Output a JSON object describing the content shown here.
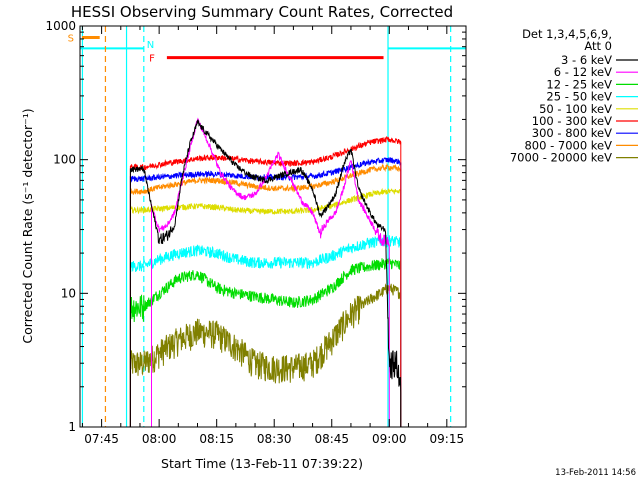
{
  "chart_data": {
    "type": "line",
    "title": "HESSI Observing Summary Count Rates, Corrected",
    "xlabel": "Start Time (13-Feb-11 07:39:22)",
    "ylabel": "Corrected Count Rate (s⁻¹ detector⁻¹)",
    "y_scale": "log",
    "ylim": [
      1,
      1000
    ],
    "xlim": [
      "07:39:22",
      "09:20:00"
    ],
    "x_ticks": [
      "07:45",
      "08:00",
      "08:15",
      "08:30",
      "08:45",
      "09:00",
      "09:15"
    ],
    "y_ticks": [
      "1",
      "10",
      "100",
      "1000"
    ],
    "legend_header": [
      "Det 1,3,4,5,6,9,",
      "Att 0"
    ],
    "legend_position": "right",
    "timestamp": "13-Feb-2011 14:56",
    "data_start": "07:52:30",
    "data_end": "09:03:00",
    "series": [
      {
        "name": "3 - 6 keV",
        "color": "#000000",
        "t": [
          "07:52:30",
          "07:56:00",
          "07:58:00",
          "08:00:00",
          "08:02:00",
          "08:04:00",
          "08:06:00",
          "08:08:00",
          "08:10:00",
          "08:13:00",
          "08:16:00",
          "08:20:00",
          "08:24:00",
          "08:28:00",
          "08:31:00",
          "08:34:00",
          "08:37:00",
          "08:40:00",
          "08:42:00",
          "08:44:00",
          "08:46:00",
          "08:48:00",
          "08:50:00",
          "08:52:00",
          "08:55:00",
          "08:57:00",
          "08:59:00",
          "09:00:00",
          "09:02:00",
          "09:03:00"
        ],
        "v": [
          85,
          85,
          45,
          25,
          27,
          32,
          75,
          130,
          190,
          150,
          120,
          90,
          75,
          70,
          75,
          80,
          85,
          60,
          38,
          45,
          55,
          90,
          120,
          60,
          40,
          32,
          30,
          3,
          3,
          2
        ]
      },
      {
        "name": "6 - 12 keV",
        "color": "#ff00ff",
        "t": [
          "07:58:00",
          "08:00:00",
          "08:02:00",
          "08:04:00",
          "08:06:00",
          "08:08:00",
          "08:10:00",
          "08:13:00",
          "08:16:00",
          "08:19:00",
          "08:22:00",
          "08:25:00",
          "08:28:00",
          "08:31:00",
          "08:34:00",
          "08:37:00",
          "08:40:00",
          "08:42:00",
          "08:44:00",
          "08:46:00",
          "08:48:00",
          "08:50:00",
          "08:52:00",
          "08:55:00",
          "08:58:00",
          "09:00:00"
        ],
        "v": [
          45,
          30,
          32,
          40,
          70,
          120,
          200,
          130,
          80,
          60,
          52,
          55,
          75,
          110,
          75,
          50,
          40,
          28,
          35,
          40,
          60,
          100,
          50,
          35,
          25,
          25
        ]
      },
      {
        "name": "12 - 25 keV",
        "color": "#00dd00",
        "t": [
          "07:52:30",
          "07:56:00",
          "08:00:00",
          "08:05:00",
          "08:10:00",
          "08:15:00",
          "08:20:00",
          "08:25:00",
          "08:30:00",
          "08:35:00",
          "08:40:00",
          "08:45:00",
          "08:50:00",
          "08:55:00",
          "09:00:00",
          "09:03:00"
        ],
        "v": [
          8,
          8,
          10,
          13,
          14,
          11,
          10,
          9.5,
          9,
          8.5,
          9,
          11,
          15,
          16,
          17,
          16
        ]
      },
      {
        "name": "25 - 50 keV",
        "color": "#00ffff",
        "t": [
          "07:52:30",
          "07:56:00",
          "08:00:00",
          "08:05:00",
          "08:10:00",
          "08:15:00",
          "08:20:00",
          "08:25:00",
          "08:30:00",
          "08:35:00",
          "08:40:00",
          "08:45:00",
          "08:50:00",
          "08:55:00",
          "09:00:00",
          "09:03:00"
        ],
        "v": [
          16,
          16,
          18,
          20,
          21,
          20,
          18,
          17,
          17,
          17,
          17,
          19,
          22,
          24,
          25,
          24
        ]
      },
      {
        "name": "50 - 100 keV",
        "color": "#dddd00",
        "t": [
          "07:52:30",
          "07:56:00",
          "08:00:00",
          "08:05:00",
          "08:10:00",
          "08:15:00",
          "08:20:00",
          "08:25:00",
          "08:30:00",
          "08:35:00",
          "08:40:00",
          "08:45:00",
          "08:50:00",
          "08:55:00",
          "09:00:00",
          "09:03:00"
        ],
        "v": [
          42,
          42,
          43,
          44,
          45,
          44,
          42,
          41,
          41,
          41,
          42,
          45,
          50,
          55,
          58,
          58
        ]
      },
      {
        "name": "100 - 300 keV",
        "color": "#ff0000",
        "t": [
          "07:52:30",
          "07:56:00",
          "08:00:00",
          "08:05:00",
          "08:10:00",
          "08:15:00",
          "08:20:00",
          "08:25:00",
          "08:30:00",
          "08:35:00",
          "08:40:00",
          "08:45:00",
          "08:50:00",
          "08:55:00",
          "09:00:00",
          "09:03:00"
        ],
        "v": [
          88,
          88,
          92,
          97,
          102,
          104,
          101,
          97,
          95,
          94,
          96,
          105,
          120,
          135,
          142,
          135
        ]
      },
      {
        "name": "300 - 800 keV",
        "color": "#0000ff",
        "t": [
          "07:52:30",
          "07:56:00",
          "08:00:00",
          "08:05:00",
          "08:10:00",
          "08:15:00",
          "08:20:00",
          "08:25:00",
          "08:30:00",
          "08:35:00",
          "08:40:00",
          "08:45:00",
          "08:50:00",
          "08:55:00",
          "09:00:00",
          "09:03:00"
        ],
        "v": [
          72,
          72,
          74,
          76,
          78,
          78,
          76,
          74,
          74,
          74,
          75,
          80,
          88,
          96,
          100,
          96
        ]
      },
      {
        "name": "800 - 7000 keV",
        "color": "#ff8c00",
        "t": [
          "07:52:30",
          "07:56:00",
          "08:00:00",
          "08:05:00",
          "08:10:00",
          "08:15:00",
          "08:20:00",
          "08:25:00",
          "08:30:00",
          "08:35:00",
          "08:40:00",
          "08:45:00",
          "08:50:00",
          "08:55:00",
          "09:00:00",
          "09:03:00"
        ],
        "v": [
          58,
          58,
          62,
          66,
          70,
          70,
          67,
          63,
          61,
          61,
          63,
          68,
          76,
          84,
          88,
          85
        ]
      },
      {
        "name": "7000 - 20000 keV",
        "color": "#808000",
        "t": [
          "07:52:30",
          "07:56:00",
          "08:00:00",
          "08:05:00",
          "08:10:00",
          "08:15:00",
          "08:20:00",
          "08:25:00",
          "08:30:00",
          "08:35:00",
          "08:40:00",
          "08:45:00",
          "08:50:00",
          "08:55:00",
          "09:00:00",
          "09:03:00"
        ],
        "v": [
          3,
          3,
          3.6,
          4.5,
          5.2,
          5,
          4,
          3,
          2.8,
          2.8,
          3,
          4.5,
          7,
          9,
          11,
          10
        ]
      }
    ],
    "annotations": [
      {
        "label": "S",
        "color": "#ff8c00",
        "from": "07:39:22",
        "to": "07:44:30",
        "y": 820
      },
      {
        "label": "N",
        "color": "#00ffff",
        "at": "07:56:00"
      },
      {
        "label": "F",
        "color": "#ff0000",
        "from": "08:01:30",
        "to": "08:58:30",
        "y": 580
      }
    ],
    "vertical_markers": [
      {
        "at": "07:40:00",
        "color": "#00ffff",
        "style": "solid"
      },
      {
        "at": "07:46:00",
        "color": "#ff8c00",
        "style": "dashed"
      },
      {
        "at": "07:51:30",
        "color": "#00ffff",
        "style": "solid"
      },
      {
        "at": "07:56:00",
        "color": "#00ffff",
        "style": "dashed"
      },
      {
        "at": "08:59:40",
        "color": "#00ffff",
        "style": "solid"
      },
      {
        "at": "09:16:00",
        "color": "#00ffff",
        "style": "dashed"
      }
    ],
    "horizontal_segments": [
      {
        "from": "07:39:22",
        "to": "07:56:00",
        "y": 680,
        "color": "#00ffff"
      },
      {
        "from": "08:59:40",
        "to": "09:20:00",
        "y": 680,
        "color": "#00ffff"
      }
    ]
  }
}
